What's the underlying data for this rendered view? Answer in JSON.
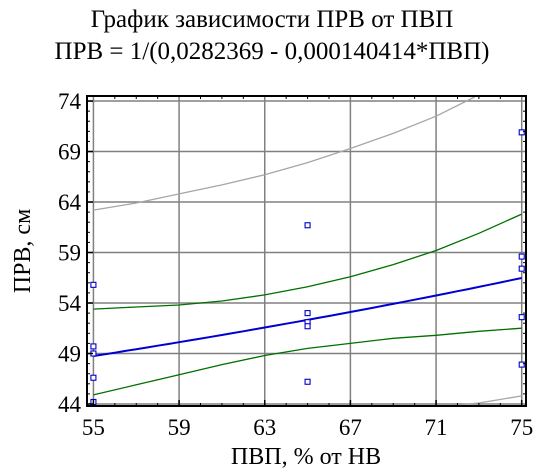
{
  "chart_data": {
    "type": "scatter",
    "title": "График зависимости ПРВ от ПВП",
    "subtitle": "ПРВ = 1/(0,0282369 - 0,000140414*ПВП)",
    "xlabel": "ПВП, % от НВ",
    "ylabel": "ПРВ, см",
    "xlim": [
      54.7,
      75.2
    ],
    "ylim": [
      43.8,
      74.5
    ],
    "xticks": [
      55,
      59,
      63,
      67,
      71,
      75
    ],
    "yticks": [
      44,
      49,
      54,
      59,
      64,
      69,
      74
    ],
    "grid": true,
    "model": {
      "a": 0.0282369,
      "b": 0.000140414
    },
    "points": [
      {
        "x": 55,
        "y": 55.8
      },
      {
        "x": 55,
        "y": 49.7
      },
      {
        "x": 55,
        "y": 49.0
      },
      {
        "x": 55,
        "y": 46.6
      },
      {
        "x": 55,
        "y": 44.2
      },
      {
        "x": 65,
        "y": 61.7
      },
      {
        "x": 65,
        "y": 53.0
      },
      {
        "x": 65,
        "y": 52.1
      },
      {
        "x": 65,
        "y": 51.7
      },
      {
        "x": 65,
        "y": 46.2
      },
      {
        "x": 75,
        "y": 70.9
      },
      {
        "x": 75,
        "y": 58.6
      },
      {
        "x": 75,
        "y": 57.4
      },
      {
        "x": 75,
        "y": 52.6
      },
      {
        "x": 75,
        "y": 47.9
      }
    ],
    "confidence_band": {
      "upper": [
        [
          55,
          53.4
        ],
        [
          57,
          53.6
        ],
        [
          59,
          53.8
        ],
        [
          61,
          54.2
        ],
        [
          63,
          54.8
        ],
        [
          65,
          55.6
        ],
        [
          67,
          56.6
        ],
        [
          69,
          57.8
        ],
        [
          71,
          59.2
        ],
        [
          73,
          60.9
        ],
        [
          75,
          62.8
        ]
      ],
      "lower": [
        [
          55,
          44.9
        ],
        [
          57,
          45.9
        ],
        [
          59,
          46.9
        ],
        [
          61,
          47.9
        ],
        [
          63,
          48.8
        ],
        [
          65,
          49.5
        ],
        [
          67,
          50.0
        ],
        [
          69,
          50.5
        ],
        [
          71,
          50.8
        ],
        [
          73,
          51.2
        ],
        [
          75,
          51.5
        ]
      ]
    },
    "prediction_band": {
      "upper": [
        [
          55,
          63.2
        ],
        [
          57,
          63.9
        ],
        [
          59,
          64.8
        ],
        [
          61,
          65.7
        ],
        [
          63,
          66.7
        ],
        [
          65,
          67.9
        ],
        [
          67,
          69.3
        ],
        [
          69,
          70.8
        ],
        [
          71,
          72.5
        ],
        [
          72.8,
          74.4
        ]
      ],
      "lower": [
        [
          71.5,
          43.8
        ],
        [
          73,
          44.1
        ],
        [
          75,
          44.8
        ]
      ]
    },
    "colors": {
      "fit": "#0000d0",
      "confidence": "#007000",
      "prediction": "#a6a6a6",
      "points": "#0000cc",
      "grid": "#808080"
    }
  }
}
